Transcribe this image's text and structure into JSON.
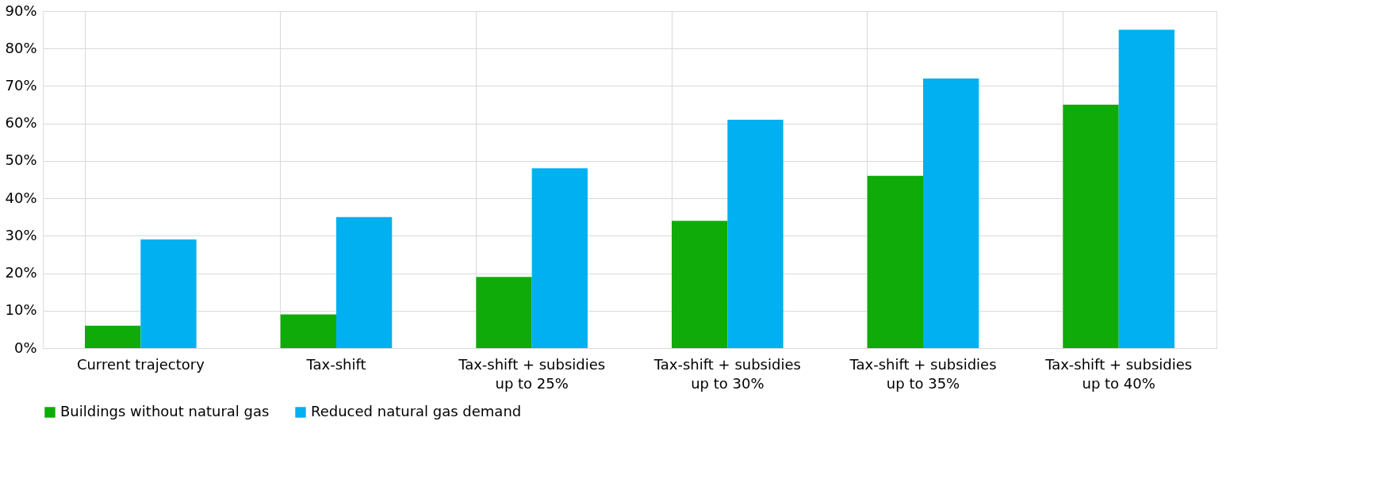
{
  "chart_data": {
    "type": "bar",
    "categories": [
      "Current trajectory",
      "Tax-shift",
      "Tax-shift + subsidies up to 25%",
      "Tax-shift + subsidies up to 30%",
      "Tax-shift + subsidies up to 35%",
      "Tax-shift + subsidies up to 40%"
    ],
    "series": [
      {
        "name": "Buildings without natural gas",
        "color": "#0fab08",
        "values": [
          6,
          9,
          19,
          34,
          46,
          65
        ]
      },
      {
        "name": "Reduced natural gas demand",
        "color": "#00b0f0",
        "values": [
          29,
          35,
          48,
          61,
          72,
          85
        ]
      }
    ],
    "ylim": [
      0,
      90
    ],
    "yticks": [
      {
        "value": 0,
        "label": "0%"
      },
      {
        "value": 10,
        "label": "10%"
      },
      {
        "value": 20,
        "label": "20%"
      },
      {
        "value": 30,
        "label": "30%"
      },
      {
        "value": 40,
        "label": "40%"
      },
      {
        "value": 50,
        "label": "50%"
      },
      {
        "value": 60,
        "label": "60%"
      },
      {
        "value": 70,
        "label": "70%"
      },
      {
        "value": 80,
        "label": "80%"
      },
      {
        "value": 90,
        "label": "90%"
      }
    ],
    "grid": true,
    "legend": "bottom"
  }
}
